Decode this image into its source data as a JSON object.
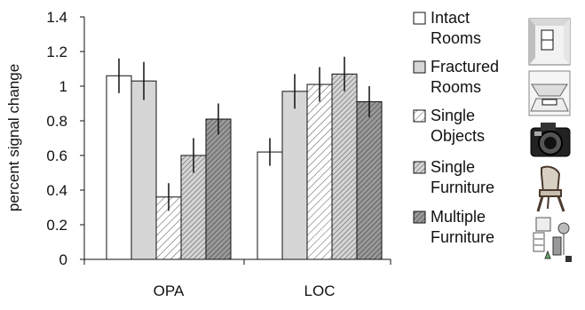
{
  "chart_data": {
    "type": "bar",
    "categories": [
      "OPA",
      "LOC"
    ],
    "ylabel": "percent signal change",
    "xlabel": "",
    "ylim": [
      0,
      1.4
    ],
    "yticks": [
      "0",
      "0.2",
      "0.4",
      "0.6",
      "0.8",
      "1",
      "1.2",
      "1.4"
    ],
    "error_bars": true,
    "legend_position": "right",
    "series": [
      {
        "name_lines": [
          "Intact",
          "Rooms"
        ],
        "values": [
          1.06,
          0.62
        ],
        "errors": [
          0.1,
          0.08
        ],
        "fill": "#ffffff",
        "pattern": "none",
        "thumbnail": "empty-room-thumbnail"
      },
      {
        "name_lines": [
          "Fractured",
          "Rooms"
        ],
        "values": [
          1.03,
          0.97
        ],
        "errors": [
          0.11,
          0.1
        ],
        "fill": "#d6d6d6",
        "pattern": "none",
        "thumbnail": "fractured-room-thumbnail"
      },
      {
        "name_lines": [
          "Single",
          "Objects"
        ],
        "values": [
          0.36,
          1.01
        ],
        "errors": [
          0.08,
          0.1
        ],
        "fill": "#ffffff",
        "pattern": "sparse-diagonal-hatch",
        "thumbnail": "camera-thumbnail"
      },
      {
        "name_lines": [
          "Single",
          "Furniture"
        ],
        "values": [
          0.6,
          1.07
        ],
        "errors": [
          0.1,
          0.1
        ],
        "fill": "#d6d6d6",
        "pattern": "dense-diagonal-hatch",
        "thumbnail": "chair-thumbnail"
      },
      {
        "name_lines": [
          "Multiple",
          "Furniture"
        ],
        "values": [
          0.81,
          0.91
        ],
        "errors": [
          0.09,
          0.09
        ],
        "fill": "#8d8d8d",
        "pattern": "dark-diagonal-hatch",
        "thumbnail": "furniture-collection-thumbnail"
      }
    ]
  }
}
